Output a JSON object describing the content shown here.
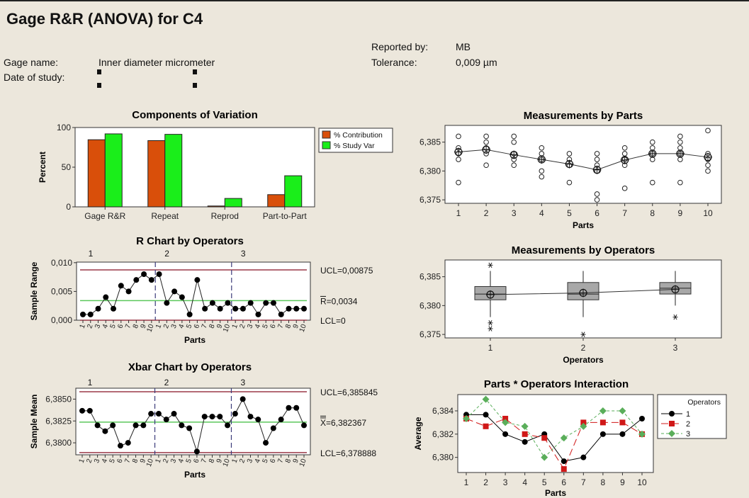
{
  "header": {
    "title": "Gage R&R (ANOVA) for C4",
    "gage_name_label": "Gage name:",
    "gage_name_value": "Inner diameter micrometer",
    "date_label": "Date of study:",
    "reported_by_label": "Reported by:",
    "reported_by_value": "MB",
    "tolerance_label": "Tolerance:",
    "tolerance_value": "0,009 µm"
  },
  "colors": {
    "contribution": "#d94f0a",
    "study_var": "#1aee1a",
    "control_limit": "#9b3a48",
    "center_line": "#5cc85c",
    "op1": "#000000",
    "op2": "#d01818",
    "op3": "#5aae5a",
    "box_fill": "#a8a8a8"
  },
  "chart_data": [
    {
      "id": "cov",
      "type": "bar",
      "title": "Components of Variation",
      "ylabel": "Percent",
      "xlabel": "",
      "ylim": [
        0,
        100
      ],
      "yticks": [
        0,
        50,
        100
      ],
      "ytick_labels": [
        "0",
        "50",
        "100"
      ],
      "categories": [
        "Gage R&R",
        "Repeat",
        "Reprod",
        "Part-to-Part"
      ],
      "series": [
        {
          "name": "% Contribution",
          "values": [
            84.6,
            83.5,
            1.1,
            15.4
          ]
        },
        {
          "name": "% Study Var",
          "values": [
            92.0,
            91.4,
            10.6,
            39.2
          ]
        }
      ],
      "legend": "right"
    },
    {
      "id": "rchart",
      "type": "line",
      "title": "R Chart by Operators",
      "ylabel": "Sample Range",
      "xlabel": "Parts",
      "ylim": [
        0,
        0.0101
      ],
      "yticks": [
        0,
        0.005,
        0.01
      ],
      "ytick_labels": [
        "0,000",
        "0,005",
        "0,010"
      ],
      "groups": [
        "1",
        "2",
        "3"
      ],
      "x_tick_labels": [
        "1",
        "2",
        "3",
        "4",
        "5",
        "6",
        "7",
        "8",
        "9",
        "10"
      ],
      "values": [
        0.001,
        0.001,
        0.002,
        0.004,
        0.002,
        0.006,
        0.005,
        0.007,
        0.008,
        0.007,
        0.008,
        0.003,
        0.005,
        0.004,
        0.001,
        0.007,
        0.002,
        0.003,
        0.002,
        0.003,
        0.002,
        0.002,
        0.003,
        0.001,
        0.003,
        0.003,
        0.001,
        0.002,
        0.002,
        0.002
      ],
      "ucl": 0.00875,
      "center": 0.0034,
      "lcl": 0,
      "ucl_label": "UCL=0,00875",
      "center_label": "R=0,0034",
      "lcl_label": "LCL=0"
    },
    {
      "id": "xbar",
      "type": "line",
      "title": "Xbar Chart by Operators",
      "ylabel": "Sample Mean",
      "xlabel": "Parts",
      "ylim": [
        6.37863,
        6.38625
      ],
      "yticks": [
        6.38,
        6.3825,
        6.385
      ],
      "ytick_labels": [
        "6,3800",
        "6,3825",
        "6,3850"
      ],
      "groups": [
        "1",
        "2",
        "3"
      ],
      "x_tick_labels": [
        "1",
        "2",
        "3",
        "4",
        "5",
        "6",
        "7",
        "8",
        "9",
        "10"
      ],
      "values": [
        6.38367,
        6.38367,
        6.382,
        6.38133,
        6.382,
        6.37967,
        6.38,
        6.382,
        6.382,
        6.38333,
        6.38333,
        6.38267,
        6.38333,
        6.382,
        6.38167,
        6.379,
        6.383,
        6.383,
        6.383,
        6.382,
        6.38333,
        6.385,
        6.383,
        6.38267,
        6.38,
        6.38167,
        6.38267,
        6.384,
        6.384,
        6.382
      ],
      "ucl": 6.385845,
      "center": 6.382367,
      "lcl": 6.378888,
      "ucl_label": "UCL=6,385845",
      "center_label": "X=6,382367",
      "lcl_label": "LCL=6,378888"
    },
    {
      "id": "byparts",
      "type": "scatter",
      "title": "Measurements by Parts",
      "xlabel": "Parts",
      "ylabel": "",
      "ylim": [
        6.3744,
        6.3879
      ],
      "yticks": [
        6.375,
        6.38,
        6.385
      ],
      "ytick_labels": [
        "6,375",
        "6,380",
        "6,385"
      ],
      "x": [
        1,
        2,
        3,
        4,
        5,
        6,
        7,
        8,
        9,
        10
      ],
      "points": [
        [
          6.386,
          6.384,
          6.383,
          6.382,
          6.378
        ],
        [
          6.386,
          6.385,
          6.384,
          6.383,
          6.381
        ],
        [
          6.386,
          6.385,
          6.383,
          6.382,
          6.381
        ],
        [
          6.384,
          6.383,
          6.382,
          6.38,
          6.379
        ],
        [
          6.383,
          6.382,
          6.381,
          6.378
        ],
        [
          6.383,
          6.382,
          6.381,
          6.38,
          6.376,
          6.375
        ],
        [
          6.384,
          6.383,
          6.382,
          6.381,
          6.377
        ],
        [
          6.385,
          6.384,
          6.383,
          6.382,
          6.378
        ],
        [
          6.386,
          6.385,
          6.384,
          6.383,
          6.382,
          6.378
        ],
        [
          6.387,
          6.383,
          6.382,
          6.381,
          6.38
        ]
      ],
      "means": [
        6.3833,
        6.3837,
        6.3828,
        6.382,
        6.3812,
        6.3802,
        6.3819,
        6.383,
        6.383,
        6.3824
      ]
    },
    {
      "id": "byops",
      "type": "box",
      "title": "Measurements by Operators",
      "xlabel": "Operators",
      "ylabel": "",
      "ylim": [
        6.3744,
        6.3879
      ],
      "yticks": [
        6.375,
        6.38,
        6.385
      ],
      "ytick_labels": [
        "6,375",
        "6,380",
        "6,385"
      ],
      "categories": [
        "1",
        "2",
        "3"
      ],
      "boxes": [
        {
          "q1": 6.381,
          "median": 6.382,
          "q3": 6.3833,
          "whisker_low": 6.378,
          "whisker_high": 6.386,
          "mean": 6.3819,
          "outliers": [
            6.387,
            6.377,
            6.376
          ]
        },
        {
          "q1": 6.381,
          "median": 6.382,
          "q3": 6.384,
          "whisker_low": 6.378,
          "whisker_high": 6.386,
          "mean": 6.3822,
          "outliers": [
            6.375
          ]
        },
        {
          "q1": 6.382,
          "median": 6.383,
          "q3": 6.384,
          "whisker_low": 6.38,
          "whisker_high": 6.386,
          "mean": 6.3828,
          "outliers": [
            6.378
          ]
        }
      ]
    },
    {
      "id": "interaction",
      "type": "line",
      "title": "Parts * Operators Interaction",
      "xlabel": "Parts",
      "ylabel": "Average",
      "ylim": [
        6.3787,
        6.3854
      ],
      "yticks": [
        6.38,
        6.382,
        6.384
      ],
      "ytick_labels": [
        "6,380",
        "6,382",
        "6,384"
      ],
      "x": [
        1,
        2,
        3,
        4,
        5,
        6,
        7,
        8,
        9,
        10
      ],
      "legend_title": "Operators",
      "legend": "right",
      "series": [
        {
          "name": "1",
          "values": [
            6.38367,
            6.38367,
            6.382,
            6.38133,
            6.382,
            6.37967,
            6.38,
            6.382,
            6.382,
            6.38333
          ]
        },
        {
          "name": "2",
          "values": [
            6.38333,
            6.38267,
            6.38333,
            6.382,
            6.38167,
            6.379,
            6.383,
            6.383,
            6.383,
            6.382
          ]
        },
        {
          "name": "3",
          "values": [
            6.38333,
            6.385,
            6.383,
            6.38267,
            6.38,
            6.38167,
            6.38267,
            6.384,
            6.384,
            6.382
          ]
        }
      ]
    }
  ]
}
